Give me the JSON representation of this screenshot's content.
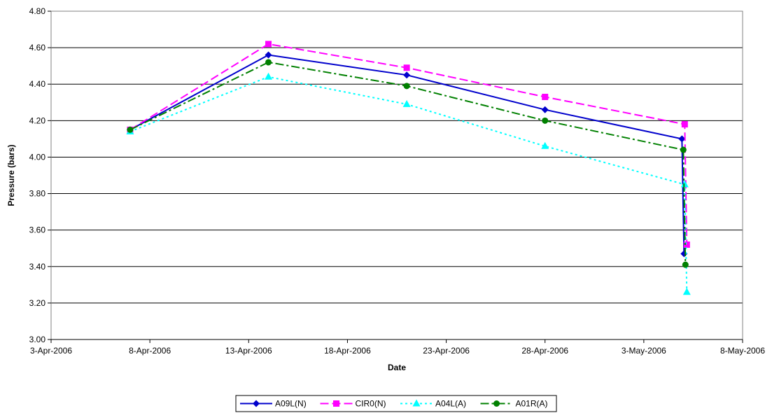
{
  "chart_data": {
    "type": "line",
    "title": "",
    "xlabel": "Date",
    "ylabel": "Pressure (bars)",
    "x_ticks": [
      "2006-04-03",
      "2006-04-08",
      "2006-04-13",
      "2006-04-18",
      "2006-04-23",
      "2006-04-28",
      "2006-05-03",
      "2006-05-08"
    ],
    "x_tick_labels": [
      "3-Apr-2006",
      "8-Apr-2006",
      "13-Apr-2006",
      "18-Apr-2006",
      "23-Apr-2006",
      "28-Apr-2006",
      "3-May-2006",
      "8-May-2006"
    ],
    "xlim": [
      "2006-04-03",
      "2006-05-08"
    ],
    "ylim": [
      3.0,
      4.8
    ],
    "y_ticks": [
      3.0,
      3.2,
      3.4,
      3.6,
      3.8,
      4.0,
      4.2,
      4.4,
      4.6,
      4.8
    ],
    "y_tick_labels": [
      "3.00",
      "3.20",
      "3.40",
      "3.60",
      "3.80",
      "4.00",
      "4.20",
      "4.40",
      "4.60",
      "4.80"
    ],
    "grid": "horizontal",
    "legend_position": "bottom",
    "series": [
      {
        "name": "A09L(N)",
        "color": "#0000CC",
        "marker": "diamond",
        "dash": "solid",
        "points": [
          {
            "x": "2006-04-07",
            "y": 4.15
          },
          {
            "x": "2006-04-14",
            "y": 4.56
          },
          {
            "x": "2006-04-21",
            "y": 4.45
          },
          {
            "x": "2006-04-28",
            "y": 4.26
          },
          {
            "x": "2006-05-05",
            "y": 4.1
          },
          {
            "x": "2006-05-05",
            "y": 3.47
          }
        ]
      },
      {
        "name": "CIR0(N)",
        "color": "#FF00FF",
        "marker": "square",
        "dash": "dashed",
        "points": [
          {
            "x": "2006-04-07",
            "y": 4.15
          },
          {
            "x": "2006-04-14",
            "y": 4.62
          },
          {
            "x": "2006-04-21",
            "y": 4.49
          },
          {
            "x": "2006-04-28",
            "y": 4.33
          },
          {
            "x": "2006-05-05",
            "y": 4.18
          },
          {
            "x": "2006-05-05",
            "y": 3.52
          }
        ]
      },
      {
        "name": "A04L(A)",
        "color": "#00FFFF",
        "marker": "triangle",
        "dash": "dotted",
        "points": [
          {
            "x": "2006-04-07",
            "y": 4.14
          },
          {
            "x": "2006-04-14",
            "y": 4.44
          },
          {
            "x": "2006-04-21",
            "y": 4.29
          },
          {
            "x": "2006-04-28",
            "y": 4.06
          },
          {
            "x": "2006-05-05",
            "y": 3.85
          },
          {
            "x": "2006-05-05",
            "y": 3.26
          }
        ]
      },
      {
        "name": "A01R(A)",
        "color": "#008000",
        "marker": "circle",
        "dash": "dashdot",
        "points": [
          {
            "x": "2006-04-07",
            "y": 4.15
          },
          {
            "x": "2006-04-14",
            "y": 4.52
          },
          {
            "x": "2006-04-21",
            "y": 4.39
          },
          {
            "x": "2006-04-28",
            "y": 4.2
          },
          {
            "x": "2006-05-05",
            "y": 4.04
          },
          {
            "x": "2006-05-05",
            "y": 3.41
          }
        ]
      }
    ]
  }
}
